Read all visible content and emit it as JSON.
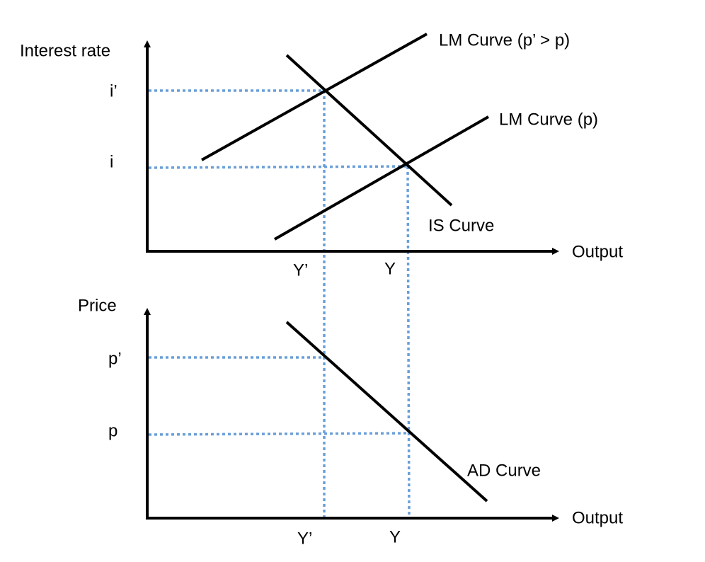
{
  "top_panel": {
    "y_axis_label": "Interest rate",
    "y_labels": [
      "i’",
      "i"
    ],
    "x_axis_label": "Output",
    "x_labels": [
      "Y’",
      "Y"
    ],
    "curves": [
      "LM Curve (p’ > p)",
      "LM Curve (p)",
      "IS Curve"
    ]
  },
  "bottom_panel": {
    "y_axis_label": "Price",
    "y_labels": [
      "p’",
      "p"
    ],
    "x_axis_label": "Output",
    "x_labels": [
      "Y’",
      "Y"
    ],
    "curves": [
      "AD Curve"
    ]
  }
}
